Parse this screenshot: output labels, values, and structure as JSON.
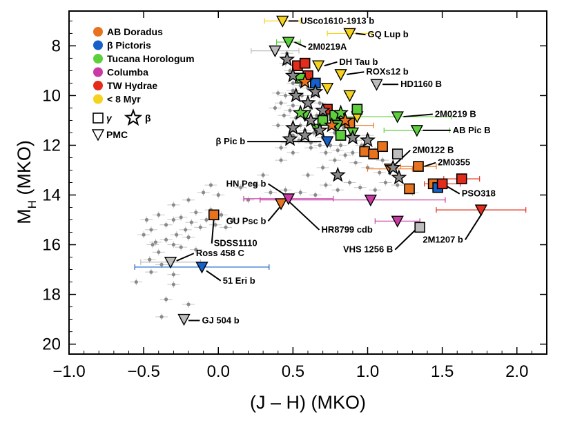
{
  "chart_data": {
    "type": "scatter",
    "xlabel": "(J – H) (MKO)",
    "ylabel_main": "M",
    "ylabel_sub": "H",
    "ylabel_tail": " (MKO)",
    "xlim": [
      -1.0,
      2.2
    ],
    "ylim": [
      20.4,
      6.6
    ],
    "y_inverted": true,
    "x_ticks": [
      -1.0,
      -0.5,
      0.0,
      0.5,
      1.0,
      1.5,
      2.0
    ],
    "x_tick_labels": [
      "−1.0",
      "−0.5",
      "0.0",
      "0.5",
      "1.0",
      "1.5",
      "2.0"
    ],
    "y_ticks": [
      8,
      10,
      12,
      14,
      16,
      18,
      20
    ],
    "y_tick_labels": [
      "8",
      "10",
      "12",
      "14",
      "16",
      "18",
      "20"
    ],
    "legend": {
      "placement": "top-left",
      "groups": [
        {
          "label": "AB Doradus",
          "color": "#e8731e"
        },
        {
          "label": "β Pictoris",
          "color": "#1560c9"
        },
        {
          "label": "Tucana Horologum",
          "color": "#5ecf3c"
        },
        {
          "label": "Columba",
          "color": "#c93aa5"
        },
        {
          "label": "TW Hydrae",
          "color": "#e32c1a"
        },
        {
          "label": "< 8 Myr",
          "color": "#f5d21e"
        }
      ],
      "symbols": [
        {
          "label": "γ",
          "shape": "square"
        },
        {
          "label": "β",
          "shape": "star"
        },
        {
          "label": "PMC",
          "shape": "triangle"
        }
      ]
    },
    "field_color": "#8a8a8a",
    "field_objects": [
      [
        -0.48,
        15.0
      ],
      [
        -0.45,
        15.4
      ],
      [
        -0.42,
        15.9
      ],
      [
        -0.4,
        16.3
      ],
      [
        -0.38,
        16.8
      ],
      [
        -0.44,
        16.0
      ],
      [
        -0.35,
        15.2
      ],
      [
        -0.3,
        15.0
      ],
      [
        -0.28,
        15.6
      ],
      [
        -0.25,
        14.9
      ],
      [
        -0.22,
        15.4
      ],
      [
        -0.18,
        15.1
      ],
      [
        -0.15,
        14.7
      ],
      [
        -0.12,
        15.3
      ],
      [
        -0.08,
        15.0
      ],
      [
        -0.05,
        14.6
      ],
      [
        -0.02,
        15.2
      ],
      [
        0.02,
        14.8
      ],
      [
        0.05,
        15.3
      ],
      [
        0.1,
        15.0
      ],
      [
        -0.2,
        14.2
      ],
      [
        -0.1,
        13.9
      ],
      [
        -0.05,
        13.6
      ],
      [
        0.0,
        14.0
      ],
      [
        -0.3,
        14.4
      ],
      [
        -0.4,
        14.8
      ],
      [
        -0.35,
        15.8
      ],
      [
        -0.25,
        16.1
      ],
      [
        -0.15,
        16.2
      ],
      [
        -0.5,
        15.6
      ],
      [
        -0.46,
        16.6
      ],
      [
        -0.3,
        17.2
      ],
      [
        -0.3,
        17.6
      ],
      [
        -0.35,
        18.2
      ],
      [
        -0.2,
        18.4
      ],
      [
        -0.38,
        18.9
      ],
      [
        -0.55,
        17.5
      ],
      [
        -0.45,
        17.1
      ],
      [
        -0.3,
        16.0
      ],
      [
        -0.2,
        15.7
      ],
      [
        0.15,
        13.7
      ],
      [
        0.25,
        13.6
      ],
      [
        0.35,
        13.9
      ],
      [
        0.45,
        13.8
      ],
      [
        0.55,
        13.9
      ],
      [
        0.65,
        14.0
      ],
      [
        0.72,
        13.6
      ],
      [
        0.8,
        13.8
      ],
      [
        0.88,
        13.5
      ],
      [
        0.95,
        13.7
      ],
      [
        1.05,
        13.8
      ],
      [
        1.12,
        13.5
      ],
      [
        1.2,
        13.6
      ],
      [
        1.3,
        13.9
      ],
      [
        0.6,
        13.2
      ],
      [
        0.7,
        12.9
      ],
      [
        0.78,
        12.6
      ],
      [
        0.85,
        12.4
      ],
      [
        0.92,
        12.7
      ],
      [
        1.0,
        12.9
      ],
      [
        1.08,
        13.1
      ],
      [
        0.5,
        12.3
      ],
      [
        0.42,
        12.6
      ],
      [
        0.62,
        12.1
      ],
      [
        0.72,
        12.3
      ],
      [
        0.82,
        12.0
      ],
      [
        0.3,
        13.2
      ],
      [
        0.2,
        14.2
      ],
      [
        0.45,
        8.7
      ],
      [
        0.48,
        9.0
      ],
      [
        0.52,
        9.3
      ],
      [
        0.55,
        9.6
      ],
      [
        0.5,
        9.8
      ],
      [
        0.45,
        10.0
      ],
      [
        0.42,
        10.3
      ],
      [
        0.48,
        10.6
      ],
      [
        0.52,
        10.9
      ],
      [
        0.55,
        11.2
      ],
      [
        0.58,
        11.4
      ],
      [
        0.5,
        11.6
      ],
      [
        0.46,
        11.9
      ],
      [
        0.42,
        12.1
      ],
      [
        0.6,
        10.2
      ],
      [
        0.62,
        10.5
      ],
      [
        0.66,
        10.8
      ],
      [
        0.7,
        11.0
      ],
      [
        0.74,
        11.3
      ],
      [
        0.78,
        11.5
      ],
      [
        0.56,
        10.0
      ],
      [
        0.6,
        9.7
      ],
      [
        0.64,
        10.0
      ],
      [
        0.68,
        10.3
      ],
      [
        0.72,
        10.6
      ],
      [
        0.76,
        10.8
      ],
      [
        0.8,
        11.1
      ],
      [
        0.84,
        11.3
      ],
      [
        0.88,
        11.6
      ],
      [
        0.92,
        11.8
      ],
      [
        0.96,
        12.0
      ],
      [
        0.5,
        10.4
      ],
      [
        0.44,
        10.8
      ],
      [
        0.4,
        11.2
      ],
      [
        0.54,
        11.8
      ],
      [
        0.62,
        11.9
      ],
      [
        0.68,
        12.0
      ],
      [
        0.58,
        9.2
      ],
      [
        0.62,
        9.4
      ],
      [
        0.66,
        9.6
      ],
      [
        0.5,
        9.5
      ],
      [
        0.4,
        9.9
      ],
      [
        0.38,
        10.5
      ],
      [
        0.64,
        11.5
      ],
      [
        0.7,
        11.7
      ],
      [
        0.75,
        12.0
      ],
      [
        0.8,
        12.2
      ],
      [
        1.05,
        12.2
      ],
      [
        1.0,
        11.6
      ],
      [
        0.9,
        12.3
      ],
      [
        1.1,
        12.6
      ],
      [
        0.46,
        8.3
      ],
      [
        0.52,
        8.9
      ]
    ],
    "young_objects": [
      {
        "x": 0.43,
        "y": 7.0,
        "shape": "triangle",
        "color": "#f5d21e"
      },
      {
        "x": 0.47,
        "y": 7.85,
        "shape": "triangle",
        "color": "#5ecf3c"
      },
      {
        "x": 0.88,
        "y": 7.5,
        "shape": "triangle",
        "color": "#f5d21e"
      },
      {
        "x": 0.38,
        "y": 8.2,
        "shape": "triangle",
        "color": "#bdbdbd"
      },
      {
        "x": 0.67,
        "y": 8.8,
        "shape": "triangle",
        "color": "#f5d21e"
      },
      {
        "x": 0.82,
        "y": 9.15,
        "shape": "triangle",
        "color": "#f5d21e"
      },
      {
        "x": 1.06,
        "y": 9.55,
        "shape": "triangle",
        "color": "#bdbdbd"
      },
      {
        "x": 0.73,
        "y": 9.7,
        "shape": "triangle",
        "color": "#f5d21e"
      },
      {
        "x": 0.88,
        "y": 10.0,
        "shape": "triangle",
        "color": "#f5d21e"
      },
      {
        "x": 0.93,
        "y": 10.85,
        "shape": "triangle",
        "color": "#f5d21e"
      },
      {
        "x": 1.2,
        "y": 10.85,
        "shape": "triangle",
        "color": "#5ecf3c"
      },
      {
        "x": 1.33,
        "y": 11.4,
        "shape": "triangle",
        "color": "#5ecf3c"
      },
      {
        "x": 0.73,
        "y": 11.85,
        "shape": "triangle",
        "color": "#1560c9"
      },
      {
        "x": 0.58,
        "y": 10.8,
        "shape": "triangle",
        "color": "#5ecf3c"
      },
      {
        "x": 0.66,
        "y": 11.35,
        "shape": "triangle",
        "color": "#5ecf3c"
      },
      {
        "x": 0.8,
        "y": 11.2,
        "shape": "triangle",
        "color": "#5ecf3c"
      },
      {
        "x": 0.9,
        "y": 11.5,
        "shape": "triangle",
        "color": "#5ecf3c"
      },
      {
        "x": 1.15,
        "y": 12.95,
        "shape": "triangle",
        "color": "#e8731e"
      },
      {
        "x": 0.42,
        "y": 14.35,
        "shape": "triangle",
        "color": "#e8731e"
      },
      {
        "x": 0.47,
        "y": 14.15,
        "shape": "triangle",
        "color": "#c93aa5"
      },
      {
        "x": 1.02,
        "y": 14.2,
        "shape": "triangle",
        "color": "#c93aa5"
      },
      {
        "x": 1.2,
        "y": 15.05,
        "shape": "triangle",
        "color": "#c93aa5"
      },
      {
        "x": 1.76,
        "y": 14.6,
        "shape": "triangle",
        "color": "#e32c1a"
      },
      {
        "x": -0.32,
        "y": 16.7,
        "shape": "triangle",
        "color": "#bdbdbd"
      },
      {
        "x": -0.11,
        "y": 16.9,
        "shape": "triangle",
        "color": "#1560c9"
      },
      {
        "x": -0.23,
        "y": 19.0,
        "shape": "triangle",
        "color": "#bdbdbd"
      },
      {
        "x": 0.53,
        "y": 8.8,
        "shape": "square",
        "color": "#e32c1a"
      },
      {
        "x": 0.58,
        "y": 8.7,
        "shape": "square",
        "color": "#e32c1a"
      },
      {
        "x": 0.6,
        "y": 9.2,
        "shape": "square",
        "color": "#e32c1a"
      },
      {
        "x": 0.65,
        "y": 9.5,
        "shape": "square",
        "color": "#1560c9"
      },
      {
        "x": 0.55,
        "y": 9.3,
        "shape": "square",
        "color": "#5ecf3c"
      },
      {
        "x": 0.73,
        "y": 10.55,
        "shape": "square",
        "color": "#e32c1a"
      },
      {
        "x": 0.93,
        "y": 10.55,
        "shape": "square",
        "color": "#5ecf3c"
      },
      {
        "x": 0.78,
        "y": 10.8,
        "shape": "square",
        "color": "#5ecf3c"
      },
      {
        "x": 0.82,
        "y": 11.6,
        "shape": "square",
        "color": "#5ecf3c"
      },
      {
        "x": 0.88,
        "y": 11.1,
        "shape": "square",
        "color": "#e8731e"
      },
      {
        "x": 0.7,
        "y": 11.0,
        "shape": "square",
        "color": "#5ecf3c"
      },
      {
        "x": 0.98,
        "y": 12.25,
        "shape": "square",
        "color": "#e8731e"
      },
      {
        "x": 1.04,
        "y": 12.35,
        "shape": "square",
        "color": "#e8731e"
      },
      {
        "x": 1.1,
        "y": 12.05,
        "shape": "square",
        "color": "#e8731e"
      },
      {
        "x": 1.2,
        "y": 12.35,
        "shape": "square",
        "color": "#bdbdbd"
      },
      {
        "x": 1.34,
        "y": 12.85,
        "shape": "square",
        "color": "#e8731e"
      },
      {
        "x": 1.44,
        "y": 13.55,
        "shape": "square",
        "color": "#e8731e"
      },
      {
        "x": 1.47,
        "y": 13.7,
        "shape": "square",
        "color": "#1560c9"
      },
      {
        "x": 1.5,
        "y": 13.55,
        "shape": "square",
        "color": "#e32c1a"
      },
      {
        "x": 1.63,
        "y": 13.35,
        "shape": "square",
        "color": "#e32c1a"
      },
      {
        "x": 1.28,
        "y": 13.75,
        "shape": "square",
        "color": "#e8731e"
      },
      {
        "x": -0.03,
        "y": 14.8,
        "shape": "square",
        "color": "#e8731e"
      },
      {
        "x": 1.35,
        "y": 15.3,
        "shape": "square",
        "color": "#bdbdbd"
      },
      {
        "x": 0.58,
        "y": 9.45,
        "shape": "star",
        "color": "#e8731e"
      },
      {
        "x": 0.52,
        "y": 10.0,
        "shape": "star",
        "color": "#8a8a8a"
      },
      {
        "x": 0.6,
        "y": 10.3,
        "shape": "star",
        "color": "#8a8a8a"
      },
      {
        "x": 0.65,
        "y": 9.85,
        "shape": "star",
        "color": "#8a8a8a"
      },
      {
        "x": 0.7,
        "y": 10.6,
        "shape": "star",
        "color": "#8a8a8a"
      },
      {
        "x": 0.55,
        "y": 10.7,
        "shape": "star",
        "color": "#5ecf3c"
      },
      {
        "x": 0.62,
        "y": 11.0,
        "shape": "star",
        "color": "#8a8a8a"
      },
      {
        "x": 0.5,
        "y": 11.3,
        "shape": "star",
        "color": "#8a8a8a"
      },
      {
        "x": 0.68,
        "y": 11.4,
        "shape": "star",
        "color": "#8a8a8a"
      },
      {
        "x": 0.58,
        "y": 11.6,
        "shape": "star",
        "color": "#8a8a8a"
      },
      {
        "x": 0.48,
        "y": 11.75,
        "shape": "star",
        "color": "#8a8a8a"
      },
      {
        "x": 0.82,
        "y": 10.7,
        "shape": "star",
        "color": "#5ecf3c"
      },
      {
        "x": 0.76,
        "y": 11.2,
        "shape": "star",
        "color": "#e8731e"
      },
      {
        "x": 0.85,
        "y": 11.0,
        "shape": "star",
        "color": "#e8731e"
      },
      {
        "x": 0.9,
        "y": 11.7,
        "shape": "star",
        "color": "#8a8a8a"
      },
      {
        "x": 1.0,
        "y": 11.8,
        "shape": "star",
        "color": "#8a8a8a"
      },
      {
        "x": 0.8,
        "y": 13.2,
        "shape": "star",
        "color": "#8a8a8a"
      },
      {
        "x": 1.17,
        "y": 12.9,
        "shape": "star",
        "color": "#8a8a8a"
      },
      {
        "x": 1.21,
        "y": 13.3,
        "shape": "star",
        "color": "#8a8a8a"
      },
      {
        "x": 0.46,
        "y": 8.55,
        "shape": "star",
        "color": "#8a8a8a"
      },
      {
        "x": 0.5,
        "y": 9.2,
        "shape": "star",
        "color": "#8a8a8a"
      }
    ],
    "annotations": [
      {
        "text": "USco1610-1913 b",
        "tx": 0.55,
        "ty": 7.0,
        "px": 0.47,
        "py": 7.0
      },
      {
        "text": "2M0219A",
        "tx": 0.6,
        "ty": 8.05,
        "px": 0.51,
        "py": 7.85
      },
      {
        "text": "GQ Lup b",
        "tx": 1.0,
        "ty": 7.55,
        "px": 0.92,
        "py": 7.5
      },
      {
        "text": "DH Tau b",
        "tx": 0.81,
        "ty": 8.65,
        "px": 0.71,
        "py": 8.8
      },
      {
        "text": "ROXs12 b",
        "tx": 0.99,
        "ty": 9.05,
        "px": 0.86,
        "py": 9.15
      },
      {
        "text": "HD1160 B",
        "tx": 1.22,
        "ty": 9.55,
        "px": 1.1,
        "py": 9.55
      },
      {
        "text": "2M0219 B",
        "tx": 1.45,
        "ty": 10.75,
        "px": 1.24,
        "py": 10.85
      },
      {
        "text": "AB Pic B",
        "tx": 1.57,
        "ty": 11.4,
        "px": 1.37,
        "py": 11.4
      },
      {
        "text": "β Pic b",
        "tx": 0.18,
        "ty": 11.85,
        "px": 0.69,
        "py": 11.85
      },
      {
        "text": "2M0122 B",
        "tx": 1.3,
        "ty": 12.2,
        "px": 1.17,
        "py": 12.85
      },
      {
        "text": "2M0355",
        "tx": 1.47,
        "ty": 12.7,
        "px": 1.38,
        "py": 12.85
      },
      {
        "text": "HN Peg b",
        "tx": 0.32,
        "ty": 13.55,
        "px": 0.46,
        "py": 14.05
      },
      {
        "text": "PSO318",
        "tx": 1.63,
        "ty": 13.95,
        "px": 1.53,
        "py": 13.65
      },
      {
        "text": "GU Psc b",
        "tx": 0.32,
        "ty": 15.05,
        "px": 0.41,
        "py": 14.5
      },
      {
        "text": "HR8799 cdb",
        "tx": 0.69,
        "ty": 15.4,
        "px": 0.48,
        "py": 14.3
      },
      {
        "text": "VHS 1256 B",
        "tx": 1.17,
        "ty": 16.2,
        "px": 1.33,
        "py": 15.35
      },
      {
        "text": "2M1207 b",
        "tx": 1.64,
        "ty": 15.8,
        "px": 1.76,
        "py": 14.8
      },
      {
        "text": "SDSS1110",
        "tx": -0.03,
        "ty": 15.95,
        "px": -0.03,
        "py": 14.95
      },
      {
        "text": "Ross 458 C",
        "tx": -0.15,
        "ty": 16.35,
        "px": -0.28,
        "py": 16.65
      },
      {
        "text": "51 Eri b",
        "tx": 0.03,
        "ty": 17.45,
        "px": -0.08,
        "py": 17.05
      },
      {
        "text": "GJ 504 b",
        "tx": -0.11,
        "ty": 19.05,
        "px": -0.2,
        "py": 19.05
      }
    ],
    "error_bars": [
      {
        "x": 0.43,
        "y": 7.0,
        "xerr": 0.12,
        "color": "#f5d21e"
      },
      {
        "x": 0.88,
        "y": 7.5,
        "xerr": 0.15,
        "color": "#f5d21e"
      },
      {
        "x": 0.47,
        "y": 7.85,
        "xerr": 0.08,
        "color": "#5ecf3c"
      },
      {
        "x": 0.38,
        "y": 8.2,
        "xerr": 0.16,
        "color": "#bdbdbd"
      },
      {
        "x": 1.2,
        "y": 10.85,
        "xerr": 0.36,
        "color": "#5ecf3c"
      },
      {
        "x": 1.33,
        "y": 11.4,
        "xerr": 0.22,
        "color": "#5ecf3c"
      },
      {
        "x": 1.15,
        "y": 12.95,
        "xerr": 0.15,
        "color": "#e8731e"
      },
      {
        "x": 0.47,
        "y": 14.15,
        "xerr": 0.3,
        "color": "#c93aa5"
      },
      {
        "x": 0.9,
        "y": 14.2,
        "xerr": 0.62,
        "color": "#c93aa5"
      },
      {
        "x": 1.2,
        "y": 15.05,
        "xerr": 0.15,
        "color": "#c93aa5"
      },
      {
        "x": 1.76,
        "y": 14.6,
        "xerr": 0.3,
        "color": "#e32c1a"
      },
      {
        "x": 1.5,
        "y": 13.55,
        "xerr": 0.12,
        "color": "#e32c1a"
      },
      {
        "x": 1.63,
        "y": 13.35,
        "xerr": 0.12,
        "color": "#e32c1a"
      },
      {
        "x": -0.11,
        "y": 16.9,
        "xerr": 0.45,
        "color": "#1560c9"
      },
      {
        "x": -0.32,
        "y": 16.7,
        "xerr": 0.2,
        "color": "#bdbdbd"
      },
      {
        "x": 0.92,
        "y": 11.2,
        "xerr": 0.12,
        "color": "#e8731e"
      },
      {
        "x": 1.34,
        "y": 12.85,
        "xerr": 0.12,
        "color": "#e8731e"
      }
    ]
  }
}
